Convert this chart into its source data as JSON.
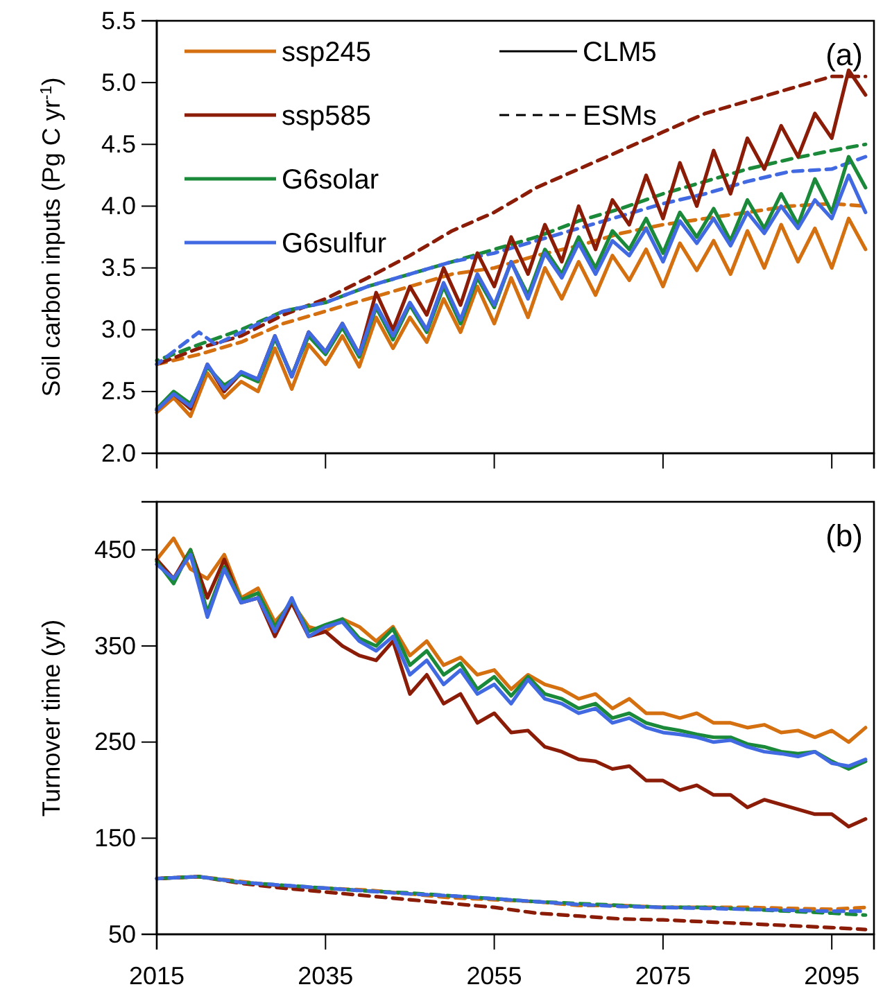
{
  "chart_data": [
    {
      "type": "line",
      "ylabel": "Soil carbon inputs (Pg C yr$^{-1}$)",
      "xlim": [
        2015,
        2100
      ],
      "xticks": [
        2015,
        2035,
        2055,
        2075,
        2095
      ],
      "ylim": [
        2.0,
        5.5
      ],
      "yticks": [
        {
          "value": 2,
          "label": "2.0"
        },
        {
          "value": 2.5,
          "label": "2.5"
        },
        {
          "value": 3,
          "label": "3.0"
        },
        {
          "value": 3.5,
          "label": "3.5"
        },
        {
          "value": 4,
          "label": "4.0"
        },
        {
          "value": 4.5,
          "label": "4.5"
        },
        {
          "value": 5,
          "label": "5.0"
        },
        {
          "value": 5.5,
          "label": "5.5"
        }
      ],
      "tick_labels": "y",
      "grid": false,
      "legend": "top left",
      "marker": "none",
      "annotations": [
        "(a)",
        "CLM5",
        "ESMs"
      ],
      "x": [
        2015,
        2017,
        2019,
        2021,
        2023,
        2025,
        2027,
        2029,
        2031,
        2033,
        2035,
        2037,
        2039,
        2041,
        2043,
        2045,
        2047,
        2049,
        2051,
        2053,
        2055,
        2057,
        2059,
        2061,
        2063,
        2065,
        2067,
        2069,
        2071,
        2073,
        2075,
        2077,
        2079,
        2081,
        2083,
        2085,
        2087,
        2089,
        2091,
        2093,
        2095,
        2097,
        2099
      ],
      "series": [
        {
          "x": [
            2015,
            2020,
            2025,
            2030,
            2035,
            2040,
            2045,
            2050,
            2055,
            2060,
            2065,
            2070,
            2075,
            2080,
            2085,
            2090,
            2095,
            2099
          ],
          "color": "#d4700f",
          "line_style": "dashed",
          "values": [
            2.72,
            2.8,
            2.9,
            3.05,
            3.15,
            3.25,
            3.35,
            3.45,
            3.5,
            3.6,
            3.68,
            3.78,
            3.85,
            3.9,
            3.95,
            4.0,
            4.02,
            4.0
          ]
        },
        {
          "x": [
            2015,
            2020,
            2025,
            2030,
            2035,
            2040,
            2045,
            2050,
            2055,
            2060,
            2065,
            2070,
            2075,
            2080,
            2085,
            2090,
            2095,
            2099
          ],
          "color": "#8b1c07",
          "line_style": "dashed",
          "values": [
            2.72,
            2.85,
            2.95,
            3.12,
            3.25,
            3.42,
            3.6,
            3.8,
            3.95,
            4.15,
            4.3,
            4.45,
            4.6,
            4.75,
            4.85,
            4.95,
            5.05,
            5.05
          ]
        },
        {
          "x": [
            2015,
            2020,
            2025,
            2030,
            2035,
            2040,
            2045,
            2050,
            2055,
            2060,
            2065,
            2070,
            2075,
            2080,
            2085,
            2090,
            2095,
            2099
          ],
          "color": "#1a8a3a",
          "line_style": "dashed",
          "values": [
            2.75,
            2.88,
            3.0,
            3.15,
            3.22,
            3.35,
            3.45,
            3.55,
            3.65,
            3.75,
            3.88,
            3.98,
            4.1,
            4.2,
            4.3,
            4.38,
            4.45,
            4.5
          ]
        },
        {
          "x": [
            2015,
            2020,
            2022,
            2025,
            2030,
            2035,
            2040,
            2045,
            2050,
            2055,
            2060,
            2065,
            2070,
            2075,
            2080,
            2085,
            2090,
            2095,
            2099
          ],
          "color": "#4169e1",
          "line_style": "dashed",
          "values": [
            2.72,
            2.98,
            2.88,
            2.98,
            3.15,
            3.22,
            3.35,
            3.45,
            3.55,
            3.62,
            3.72,
            3.82,
            3.92,
            4.02,
            4.1,
            4.2,
            4.28,
            4.3,
            4.4
          ]
        },
        {
          "name": "ssp245",
          "color": "#d4700f",
          "line_style": "solid",
          "values": [
            2.33,
            2.45,
            2.3,
            2.65,
            2.45,
            2.58,
            2.5,
            2.85,
            2.52,
            2.88,
            2.72,
            2.95,
            2.7,
            3.1,
            2.85,
            3.1,
            2.9,
            3.25,
            2.98,
            3.35,
            3.05,
            3.42,
            3.1,
            3.5,
            3.25,
            3.55,
            3.28,
            3.6,
            3.4,
            3.65,
            3.35,
            3.7,
            3.48,
            3.72,
            3.45,
            3.8,
            3.5,
            3.85,
            3.55,
            3.82,
            3.5,
            3.9,
            3.65
          ]
        },
        {
          "name": "ssp585",
          "color": "#8b1c07",
          "line_style": "solid",
          "values": [
            2.35,
            2.48,
            2.36,
            2.72,
            2.5,
            2.65,
            2.6,
            2.95,
            2.62,
            2.98,
            2.82,
            3.05,
            2.8,
            3.3,
            3.0,
            3.35,
            3.12,
            3.5,
            3.2,
            3.62,
            3.35,
            3.75,
            3.45,
            3.85,
            3.55,
            4.0,
            3.65,
            4.05,
            3.85,
            4.25,
            3.9,
            4.35,
            4.0,
            4.45,
            4.1,
            4.55,
            4.3,
            4.65,
            4.4,
            4.75,
            4.55,
            5.1,
            4.9
          ]
        },
        {
          "name": "G6solar",
          "color": "#1a8a3a",
          "line_style": "solid",
          "values": [
            2.36,
            2.5,
            2.4,
            2.7,
            2.55,
            2.64,
            2.58,
            2.93,
            2.63,
            2.95,
            2.8,
            3.02,
            2.78,
            3.18,
            2.92,
            3.2,
            2.98,
            3.35,
            3.05,
            3.42,
            3.18,
            3.55,
            3.28,
            3.65,
            3.45,
            3.75,
            3.5,
            3.8,
            3.65,
            3.9,
            3.62,
            3.95,
            3.75,
            3.98,
            3.72,
            4.05,
            3.82,
            4.1,
            3.85,
            4.22,
            3.95,
            4.4,
            4.15
          ]
        },
        {
          "name": "G6sulfur",
          "color": "#4169e1",
          "line_style": "solid",
          "values": [
            2.35,
            2.48,
            2.38,
            2.72,
            2.52,
            2.66,
            2.6,
            2.95,
            2.62,
            2.98,
            2.82,
            3.05,
            2.8,
            3.2,
            2.95,
            3.22,
            3.0,
            3.38,
            3.08,
            3.45,
            3.2,
            3.55,
            3.25,
            3.62,
            3.42,
            3.7,
            3.45,
            3.72,
            3.6,
            3.82,
            3.55,
            3.88,
            3.7,
            3.9,
            3.68,
            3.95,
            3.78,
            4.0,
            3.82,
            4.05,
            3.9,
            4.25,
            3.95
          ]
        }
      ]
    },
    {
      "type": "line",
      "ylabel": "Turnover time (yr)",
      "xlim": [
        2015,
        2100
      ],
      "xticks": [
        2015,
        2035,
        2055,
        2075,
        2095
      ],
      "ylim": [
        50,
        500
      ],
      "yticks": [
        50,
        150,
        250,
        350,
        450
      ],
      "grid": false,
      "marker": "none",
      "annotations": [
        "(b)"
      ],
      "x": [
        2015,
        2017,
        2019,
        2021,
        2023,
        2025,
        2027,
        2029,
        2031,
        2033,
        2035,
        2037,
        2039,
        2041,
        2043,
        2045,
        2047,
        2049,
        2051,
        2053,
        2055,
        2057,
        2059,
        2061,
        2063,
        2065,
        2067,
        2069,
        2071,
        2073,
        2075,
        2077,
        2079,
        2081,
        2083,
        2085,
        2087,
        2089,
        2091,
        2093,
        2095,
        2097,
        2099
      ],
      "series": [
        {
          "x": [
            2015,
            2020,
            2025,
            2030,
            2035,
            2040,
            2045,
            2050,
            2055,
            2060,
            2065,
            2070,
            2075,
            2080,
            2085,
            2090,
            2095,
            2099
          ],
          "color": "#d4700f",
          "line_style": "dashed",
          "values": [
            108,
            110,
            105,
            100,
            98,
            96,
            92,
            88,
            86,
            84,
            80,
            80,
            78,
            78,
            78,
            77,
            76,
            78
          ]
        },
        {
          "x": [
            2015,
            2020,
            2025,
            2030,
            2035,
            2040,
            2045,
            2050,
            2055,
            2060,
            2065,
            2070,
            2075,
            2080,
            2085,
            2090,
            2095,
            2099
          ],
          "color": "#8b1c07",
          "line_style": "dashed",
          "values": [
            108,
            110,
            103,
            98,
            94,
            90,
            86,
            82,
            78,
            72,
            69,
            66,
            65,
            63,
            61,
            59,
            57,
            55
          ]
        },
        {
          "x": [
            2015,
            2020,
            2025,
            2030,
            2035,
            2040,
            2045,
            2050,
            2055,
            2060,
            2065,
            2070,
            2075,
            2080,
            2085,
            2090,
            2095,
            2099
          ],
          "color": "#1a8a3a",
          "line_style": "dashed",
          "values": [
            108,
            110,
            104,
            101,
            98,
            95,
            93,
            90,
            87,
            84,
            82,
            80,
            78,
            78,
            76,
            74,
            72,
            70
          ]
        },
        {
          "x": [
            2015,
            2020,
            2025,
            2030,
            2035,
            2040,
            2045,
            2050,
            2055,
            2060,
            2065,
            2070,
            2075,
            2080,
            2085,
            2090,
            2095,
            2099
          ],
          "color": "#4169e1",
          "line_style": "dashed",
          "values": [
            108,
            110,
            104,
            101,
            98,
            95,
            92,
            90,
            87,
            84,
            81,
            79,
            78,
            77,
            76,
            75,
            74,
            74
          ]
        },
        {
          "color": "#d4700f",
          "line_style": "solid",
          "values": [
            440,
            462,
            430,
            420,
            445,
            400,
            410,
            375,
            395,
            370,
            365,
            378,
            370,
            355,
            370,
            340,
            355,
            330,
            338,
            320,
            325,
            305,
            320,
            310,
            305,
            295,
            300,
            285,
            295,
            280,
            280,
            275,
            280,
            270,
            270,
            265,
            268,
            260,
            262,
            255,
            262,
            250,
            265
          ]
        },
        {
          "color": "#8b1c07",
          "line_style": "solid",
          "values": [
            440,
            420,
            450,
            400,
            440,
            395,
            400,
            360,
            395,
            360,
            365,
            350,
            340,
            335,
            355,
            300,
            320,
            290,
            300,
            270,
            280,
            260,
            262,
            245,
            240,
            232,
            230,
            222,
            225,
            210,
            210,
            200,
            205,
            195,
            195,
            182,
            190,
            185,
            180,
            175,
            175,
            162,
            170
          ]
        },
        {
          "color": "#1a8a3a",
          "line_style": "solid",
          "values": [
            438,
            415,
            450,
            385,
            432,
            398,
            405,
            370,
            398,
            365,
            372,
            378,
            358,
            350,
            368,
            330,
            345,
            320,
            332,
            305,
            318,
            298,
            318,
            300,
            295,
            285,
            290,
            275,
            280,
            270,
            265,
            262,
            258,
            255,
            255,
            248,
            245,
            240,
            238,
            240,
            230,
            222,
            230
          ]
        },
        {
          "color": "#4169e1",
          "line_style": "solid",
          "values": [
            435,
            420,
            445,
            380,
            430,
            395,
            400,
            365,
            400,
            360,
            370,
            375,
            355,
            345,
            360,
            320,
            335,
            310,
            325,
            300,
            310,
            290,
            315,
            295,
            290,
            280,
            285,
            270,
            275,
            265,
            260,
            258,
            255,
            250,
            252,
            245,
            240,
            238,
            235,
            240,
            228,
            225,
            232
          ]
        }
      ]
    }
  ]
}
